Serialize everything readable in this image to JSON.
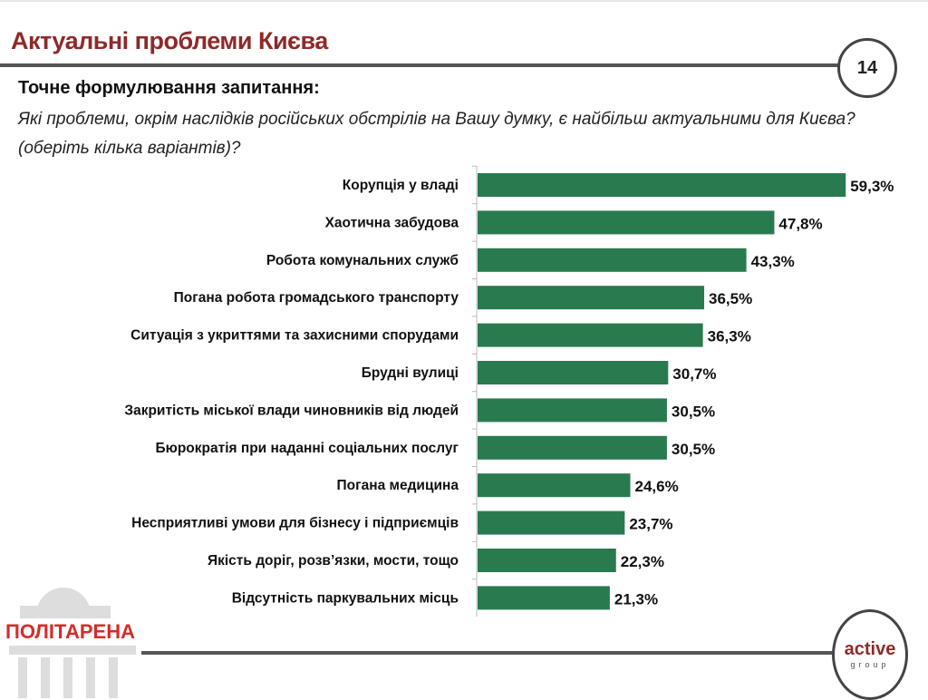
{
  "header": {
    "title": "Актуальні проблеми Києва",
    "page_number": "14"
  },
  "question": {
    "heading": "Точне формулювання запитання:",
    "text": "Які проблеми, окрім наслідків російських обстрілів на Вашу думку, є найбільш актуальними для Києва? (оберіть кілька варіантів)?"
  },
  "logos": {
    "left": "ПОЛІТАРЕНА",
    "right_main": "active",
    "right_sub": "group"
  },
  "colors": {
    "bar": "#2a7a50",
    "title": "#8e2a2a"
  },
  "chart_data": {
    "type": "bar",
    "orientation": "horizontal",
    "title": "",
    "xlabel": "",
    "ylabel": "",
    "xlim": [
      0,
      60
    ],
    "categories": [
      "Корупція у владі",
      "Хаотична забудова",
      "Робота комунальних служб",
      "Погана робота громадського транспорту",
      "Ситуація з укриттями та захисними спорудами",
      "Брудні вулиці",
      "Закритість міської влади чиновників від людей",
      "Бюрократія при наданні соціальних послуг",
      "Погана медицина",
      "Несприятливі умови для бізнесу і підприємців",
      "Якість доріг, розв’язки, мости, тощо",
      "Відсутність паркувальних місць"
    ],
    "values": [
      59.3,
      47.8,
      43.3,
      36.5,
      36.3,
      30.7,
      30.5,
      30.5,
      24.6,
      23.7,
      22.3,
      21.3
    ],
    "value_labels": [
      "59,3%",
      "47,8%",
      "43,3%",
      "36,5%",
      "36,3%",
      "30,7%",
      "30,5%",
      "30,5%",
      "24,6%",
      "23,7%",
      "22,3%",
      "21,3%"
    ]
  }
}
